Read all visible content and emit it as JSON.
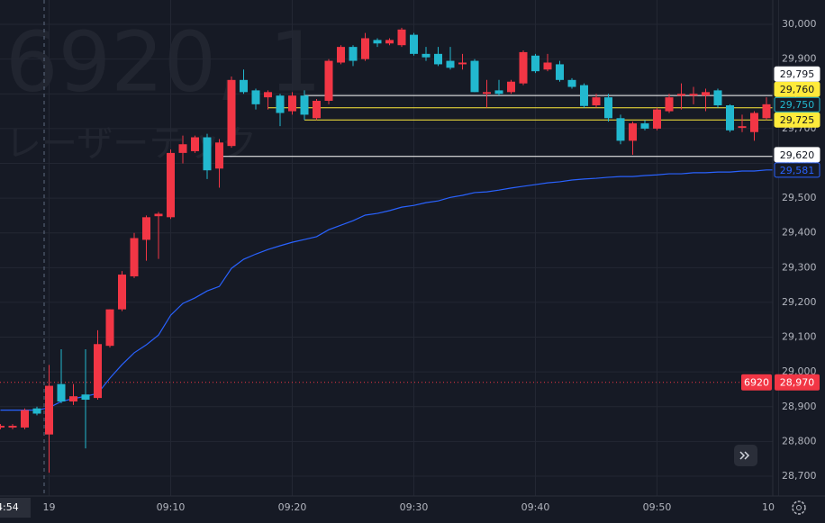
{
  "chart_data": {
    "type": "candlestick",
    "watermark_title": "6920, 1",
    "watermark_subtitle": "レーザーテック",
    "crosshair_label": "4:54",
    "categories": [
      null,
      null,
      null,
      null,
      "19",
      null,
      null,
      null,
      null,
      null,
      null,
      null,
      null,
      null,
      "09:10",
      null,
      null,
      null,
      null,
      null,
      null,
      null,
      null,
      null,
      "09:20",
      null,
      null,
      null,
      null,
      null,
      null,
      null,
      null,
      null,
      "09:30",
      null,
      null,
      null,
      null,
      null,
      null,
      null,
      null,
      null,
      "09:40",
      null,
      null,
      null,
      null,
      null,
      null,
      null,
      null,
      null,
      "09:50",
      null,
      null,
      null,
      null,
      null,
      null,
      null,
      null,
      null,
      "10"
    ],
    "open": [
      28840,
      28840,
      28840,
      28895,
      28820,
      28965,
      28915,
      28935,
      28925,
      29075,
      29180,
      29275,
      29380,
      29448,
      29445,
      29630,
      29635,
      29675,
      29585,
      29650,
      29840,
      29810,
      29790,
      29795,
      29750,
      29795,
      29730,
      29780,
      29890,
      29935,
      29900,
      29955,
      29945,
      29940,
      29970,
      29915,
      29915,
      29895,
      29885,
      29895,
      29800,
      29810,
      29805,
      29830,
      29910,
      29870,
      29885,
      29840,
      29825,
      29767,
      29790,
      29730,
      29665,
      29715,
      29700,
      29750,
      29795,
      29795,
      29795,
      29810,
      29767,
      29702,
      29690,
      29730,
      29775
    ],
    "high": [
      28850,
      28850,
      28895,
      28900,
      29020,
      29065,
      28965,
      29065,
      29120,
      29180,
      29290,
      29400,
      29450,
      29460,
      29640,
      29680,
      29680,
      29685,
      29670,
      29850,
      29870,
      29815,
      29810,
      29800,
      29805,
      29810,
      29785,
      29900,
      29940,
      29940,
      29975,
      29960,
      29960,
      29990,
      29975,
      29935,
      29935,
      29935,
      29915,
      29900,
      29840,
      29840,
      29840,
      29925,
      29915,
      29915,
      29895,
      29845,
      29830,
      29800,
      29800,
      29740,
      29720,
      29725,
      29760,
      29800,
      29830,
      29820,
      29815,
      29815,
      29770,
      29740,
      29750,
      29790,
      29785
    ],
    "low": [
      28835,
      28835,
      28835,
      28875,
      28710,
      28910,
      28905,
      28780,
      28920,
      29070,
      29175,
      29270,
      29320,
      29325,
      29440,
      29600,
      29630,
      29555,
      29530,
      29645,
      29800,
      29755,
      29755,
      29707,
      29740,
      29725,
      29725,
      29770,
      29885,
      29880,
      29895,
      29935,
      29940,
      29935,
      29910,
      29895,
      29880,
      29870,
      29870,
      29805,
      29760,
      29795,
      29800,
      29825,
      29860,
      29865,
      29835,
      29815,
      29760,
      29760,
      29720,
      29655,
      29625,
      29695,
      29695,
      29745,
      29755,
      29770,
      29750,
      29760,
      29690,
      29690,
      29665,
      29725,
      29760
    ],
    "close": [
      28845,
      28845,
      28890,
      28880,
      28960,
      28915,
      28930,
      28920,
      29080,
      29180,
      29280,
      29385,
      29445,
      29455,
      29630,
      29655,
      29675,
      29580,
      29660,
      29840,
      29805,
      29770,
      29805,
      29745,
      29795,
      29740,
      29780,
      29895,
      29935,
      29895,
      29960,
      29945,
      29955,
      29985,
      29915,
      29905,
      29885,
      29875,
      29890,
      29805,
      29805,
      29800,
      29835,
      29920,
      29865,
      29890,
      29840,
      29820,
      29765,
      29790,
      29730,
      29665,
      29715,
      29700,
      29755,
      29790,
      29800,
      29800,
      29805,
      29767,
      29695,
      29707,
      29745,
      29770,
      29765
    ],
    "up_color": "#f23645",
    "down_color": "#22b8cf",
    "lines": [
      {
        "color": "#2962ff",
        "values": [
          28890,
          28890,
          28890,
          28890,
          28897,
          28915,
          28923,
          28930,
          28938,
          28982,
          29021,
          29055,
          29078,
          29106,
          29163,
          29197,
          29213,
          29233,
          29246,
          29298,
          29324,
          29339,
          29352,
          29363,
          29373,
          29381,
          29389,
          29409,
          29422,
          29435,
          29451,
          29456,
          29464,
          29474,
          29479,
          29487,
          29492,
          29502,
          29508,
          29516,
          29518,
          29523,
          29529,
          29534,
          29539,
          29544,
          29547,
          29552,
          29555,
          29557,
          29560,
          29562,
          29562,
          29565,
          29567,
          29570,
          29570,
          29573,
          29573,
          29575,
          29575,
          29578,
          29578,
          29581,
          29581
        ]
      }
    ],
    "levels": [
      {
        "value": 29795,
        "label": "29,795",
        "color": "#ffffff",
        "line": true
      },
      {
        "value": 29760,
        "label": "29,760",
        "color": "#ffeb3b",
        "line": true
      },
      {
        "value": 29750,
        "label": "29,750",
        "color": "#22b8cf",
        "line": false
      },
      {
        "value": 29725,
        "label": "29,725",
        "color": "#ffeb3b",
        "line": true
      },
      {
        "value": 29620,
        "label": "29,620",
        "color": "#ffffff",
        "line": true
      },
      {
        "value": 29581,
        "label": "29,581",
        "color": "#2962ff",
        "line": false
      }
    ],
    "price_line": {
      "value": 28970,
      "label": "28,970",
      "tag": "6920",
      "color": "#f23645"
    },
    "ylim": [
      28643,
      30070
    ],
    "yticks": [
      {
        "value": 28700,
        "label": "28,700"
      },
      {
        "value": 28800,
        "label": "28,800"
      },
      {
        "value": 28900,
        "label": "28,900"
      },
      {
        "value": 29000,
        "label": "29,000"
      },
      {
        "value": 29100,
        "label": "29,100"
      },
      {
        "value": 29200,
        "label": "29,200"
      },
      {
        "value": 29300,
        "label": "29,300"
      },
      {
        "value": 29400,
        "label": "29,400"
      },
      {
        "value": 29500,
        "label": "29,500"
      },
      {
        "value": 29600,
        "label": "29,600"
      },
      {
        "value": 29700,
        "label": "29,700"
      },
      {
        "value": 29800,
        "label": "29,800"
      },
      {
        "value": 29900,
        "label": "29,900"
      },
      {
        "value": 30000,
        "label": "30,000"
      }
    ],
    "grid": true
  }
}
